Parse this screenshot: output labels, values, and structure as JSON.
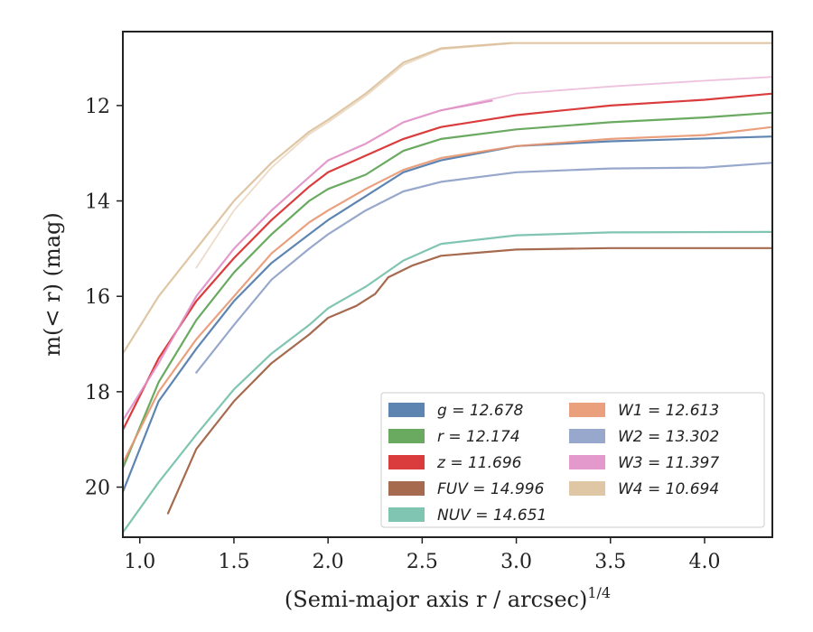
{
  "chart_data": {
    "type": "line",
    "xlabel": "(Semi-major axis r / arcsec)",
    "xlabel_exp": "1/4",
    "ylabel": "m(< r) (mag)",
    "xlim": [
      0.91,
      4.36
    ],
    "ylim": [
      21.05,
      10.45
    ],
    "y_inverted": true,
    "xticks": [
      "1.0",
      "1.5",
      "2.0",
      "2.5",
      "3.0",
      "3.5",
      "4.0"
    ],
    "xtick_values": [
      1.0,
      1.5,
      2.0,
      2.5,
      3.0,
      3.5,
      4.0
    ],
    "yticks": [
      "12",
      "14",
      "16",
      "18",
      "20"
    ],
    "ytick_values": [
      12,
      14,
      16,
      18,
      20
    ],
    "grid": false,
    "legend_position": "lower-right",
    "legend_columns": 2,
    "series": [
      {
        "name": "g = 12.678",
        "color": "#4c78a8",
        "curves": [
          [
            [
              0.91,
              20.1
            ],
            [
              1.1,
              18.2
            ],
            [
              1.3,
              17.1
            ],
            [
              1.5,
              16.1
            ],
            [
              1.7,
              15.3
            ],
            [
              1.9,
              14.7
            ],
            [
              2.0,
              14.4
            ],
            [
              2.2,
              13.9
            ],
            [
              2.4,
              13.4
            ],
            [
              2.6,
              13.15
            ],
            [
              3.0,
              12.85
            ],
            [
              3.5,
              12.75
            ],
            [
              4.36,
              12.65
            ]
          ]
        ]
      },
      {
        "name": "r = 12.174",
        "color": "#59a14f",
        "curves": [
          [
            [
              0.91,
              19.6
            ],
            [
              1.1,
              17.8
            ],
            [
              1.3,
              16.5
            ],
            [
              1.5,
              15.5
            ],
            [
              1.7,
              14.7
            ],
            [
              1.9,
              14.0
            ],
            [
              2.0,
              13.75
            ],
            [
              2.2,
              13.45
            ],
            [
              2.4,
              12.95
            ],
            [
              2.6,
              12.7
            ],
            [
              3.0,
              12.5
            ],
            [
              3.5,
              12.35
            ],
            [
              4.0,
              12.25
            ],
            [
              4.36,
              12.15
            ]
          ]
        ]
      },
      {
        "name": "z = 11.696",
        "color": "#d62728",
        "curves": [
          [
            [
              0.91,
              18.8
            ],
            [
              1.1,
              17.3
            ],
            [
              1.3,
              16.1
            ],
            [
              1.5,
              15.2
            ],
            [
              1.7,
              14.4
            ],
            [
              1.9,
              13.7
            ],
            [
              2.0,
              13.4
            ],
            [
              2.2,
              13.05
            ],
            [
              2.4,
              12.7
            ],
            [
              2.6,
              12.45
            ],
            [
              3.0,
              12.2
            ],
            [
              3.5,
              12.0
            ],
            [
              4.0,
              11.88
            ],
            [
              4.36,
              11.75
            ]
          ]
        ]
      },
      {
        "name": "FUV = 14.996",
        "color": "#9c5a3c",
        "curves": [
          [
            [
              1.15,
              20.55
            ],
            [
              1.3,
              19.2
            ],
            [
              1.5,
              18.2
            ],
            [
              1.7,
              17.4
            ],
            [
              1.9,
              16.8
            ],
            [
              2.0,
              16.45
            ],
            [
              2.15,
              16.2
            ],
            [
              2.25,
              15.95
            ],
            [
              2.32,
              15.6
            ],
            [
              2.45,
              15.35
            ],
            [
              2.6,
              15.15
            ],
            [
              3.0,
              15.02
            ],
            [
              3.5,
              14.99
            ],
            [
              4.36,
              14.99
            ]
          ]
        ]
      },
      {
        "name": "NUV = 14.651",
        "color": "#72bfa8",
        "curves": [
          [
            [
              0.91,
              20.95
            ],
            [
              1.1,
              19.9
            ],
            [
              1.3,
              18.9
            ],
            [
              1.5,
              17.95
            ],
            [
              1.7,
              17.2
            ],
            [
              1.9,
              16.6
            ],
            [
              2.0,
              16.25
            ],
            [
              2.2,
              15.8
            ],
            [
              2.4,
              15.25
            ],
            [
              2.6,
              14.9
            ],
            [
              3.0,
              14.72
            ],
            [
              3.5,
              14.66
            ],
            [
              4.36,
              14.65
            ]
          ]
        ]
      },
      {
        "name": "W1 = 12.613",
        "color": "#e8956f",
        "curves": [
          [
            [
              0.91,
              19.5
            ],
            [
              1.1,
              18.0
            ],
            [
              1.3,
              16.9
            ],
            [
              1.5,
              16.0
            ],
            [
              1.7,
              15.1
            ],
            [
              1.9,
              14.45
            ],
            [
              2.0,
              14.2
            ],
            [
              2.2,
              13.75
            ],
            [
              2.4,
              13.35
            ],
            [
              2.6,
              13.1
            ],
            [
              3.0,
              12.85
            ],
            [
              3.5,
              12.7
            ],
            [
              4.0,
              12.62
            ],
            [
              4.36,
              12.45
            ]
          ]
        ]
      },
      {
        "name": "W2 = 13.302",
        "color": "#8c9ec7",
        "curves": [
          [
            [
              1.3,
              17.6
            ],
            [
              1.5,
              16.6
            ],
            [
              1.7,
              15.65
            ],
            [
              1.9,
              15.0
            ],
            [
              2.0,
              14.7
            ],
            [
              2.2,
              14.2
            ],
            [
              2.4,
              13.8
            ],
            [
              2.6,
              13.6
            ],
            [
              3.0,
              13.4
            ],
            [
              3.5,
              13.32
            ],
            [
              4.0,
              13.3
            ],
            [
              4.36,
              13.2
            ]
          ]
        ]
      },
      {
        "name": "W3 = 11.397",
        "color": "#e08ec5",
        "curves": [
          [
            [
              0.91,
              18.6
            ],
            [
              1.1,
              17.4
            ],
            [
              1.3,
              16.0
            ],
            [
              1.5,
              15.0
            ],
            [
              1.7,
              14.2
            ],
            [
              1.9,
              13.5
            ],
            [
              2.0,
              13.15
            ],
            [
              2.2,
              12.8
            ],
            [
              2.4,
              12.35
            ],
            [
              2.6,
              12.1
            ],
            [
              2.87,
              11.9
            ]
          ],
          [
            [
              2.6,
              12.1
            ],
            [
              3.0,
              11.75
            ],
            [
              3.5,
              11.6
            ],
            [
              4.0,
              11.48
            ],
            [
              4.36,
              11.4
            ]
          ]
        ]
      },
      {
        "name": "W4 = 10.694",
        "color": "#dcc09a",
        "curves": [
          [
            [
              0.91,
              17.2
            ],
            [
              1.1,
              16.0
            ],
            [
              1.3,
              15.0
            ],
            [
              1.5,
              14.0
            ],
            [
              1.7,
              13.2
            ],
            [
              1.9,
              12.55
            ],
            [
              2.0,
              12.3
            ],
            [
              2.2,
              11.75
            ],
            [
              2.4,
              11.1
            ],
            [
              2.6,
              10.8
            ],
            [
              2.97,
              10.69
            ],
            [
              3.5,
              10.69
            ],
            [
              4.36,
              10.69
            ]
          ],
          [
            [
              1.3,
              15.4
            ],
            [
              1.5,
              14.2
            ],
            [
              1.7,
              13.3
            ],
            [
              1.9,
              12.6
            ],
            [
              2.0,
              12.35
            ],
            [
              2.2,
              11.8
            ],
            [
              2.4,
              11.15
            ],
            [
              2.6,
              10.82
            ],
            [
              2.97,
              10.7
            ]
          ]
        ]
      }
    ]
  }
}
